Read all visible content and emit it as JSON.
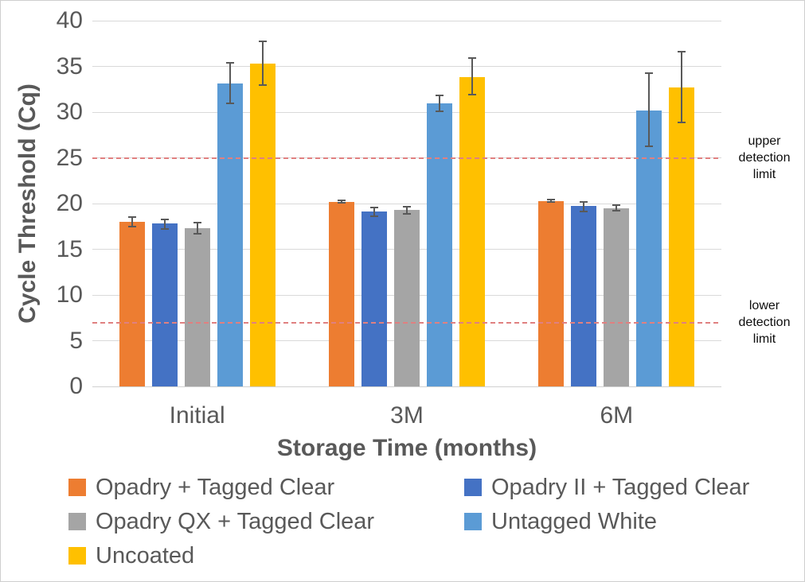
{
  "figure": {
    "background": "#FFFFFF",
    "border_color": "#CFCFCF",
    "text_color": "#595959",
    "gridline_color": "#D9D9D9",
    "error_bar_color": "#595959"
  },
  "chart_data": {
    "type": "bar",
    "title": "",
    "xlabel": "Storage Time (months)",
    "ylabel": "Cycle Threshold (Cq)",
    "categories": [
      "Initial",
      "3M",
      "6M"
    ],
    "ylim": [
      0,
      40
    ],
    "yticks": [
      0,
      5,
      10,
      15,
      20,
      25,
      30,
      35,
      40
    ],
    "grid": "horizontal",
    "legend_position": "bottom",
    "series": [
      {
        "name": "Opadry + Tagged Clear",
        "color": "#ED7D31",
        "values": [
          18.0,
          20.2,
          20.3
        ],
        "err_up": [
          0.5,
          0.15,
          0.1
        ],
        "err_down": [
          0.5,
          0.15,
          0.1
        ]
      },
      {
        "name": "Opadry II + Tagged Clear",
        "color": "#4472C4",
        "values": [
          17.8,
          19.1,
          19.7
        ],
        "err_up": [
          0.5,
          0.45,
          0.5
        ],
        "err_down": [
          0.6,
          0.45,
          0.6
        ]
      },
      {
        "name": "Opadry QX + Tagged Clear",
        "color": "#A5A5A5",
        "values": [
          17.3,
          19.3,
          19.5
        ],
        "err_up": [
          0.6,
          0.35,
          0.3
        ],
        "err_down": [
          0.6,
          0.4,
          0.3
        ]
      },
      {
        "name": "Untagged White",
        "color": "#5B9BD5",
        "values": [
          33.1,
          31.0,
          30.2
        ],
        "err_up": [
          2.3,
          0.8,
          4.1
        ],
        "err_down": [
          2.1,
          0.9,
          3.9
        ]
      },
      {
        "name": "Uncoated",
        "color": "#FFC000",
        "values": [
          35.3,
          33.8,
          32.7
        ],
        "err_up": [
          2.4,
          2.1,
          3.9
        ],
        "err_down": [
          2.3,
          1.9,
          3.8
        ]
      }
    ],
    "reference_lines": [
      {
        "value": 25,
        "label": "upper detection limit",
        "color": "#E08080",
        "style": "dashed"
      },
      {
        "value": 7,
        "label": "lower detection limit",
        "color": "#E08080",
        "style": "dashed"
      }
    ]
  }
}
